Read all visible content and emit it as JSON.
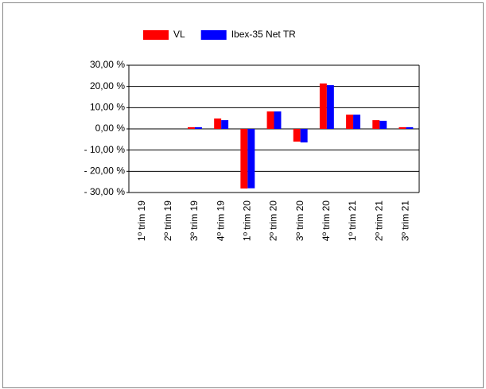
{
  "chart_data": {
    "type": "bar",
    "categories": [
      "1º trim 19",
      "2º trim 19",
      "3º trim 19",
      "4º trim 19",
      "1º trim 20",
      "2º trim 20",
      "3º trim 20",
      "4º trim 20",
      "1º trim 21",
      "2º trim 21",
      "3º trim 21"
    ],
    "series": [
      {
        "name": "VL",
        "color": "#ff0000",
        "values": [
          null,
          null,
          0.8,
          4.9,
          -28.1,
          8.2,
          -6.0,
          21.4,
          6.7,
          4.1,
          0.8
        ]
      },
      {
        "name": "Ibex-35 Net TR",
        "color": "#0000ff",
        "values": [
          null,
          null,
          0.8,
          4.1,
          -28.0,
          8.2,
          -6.4,
          20.6,
          6.7,
          3.8,
          0.8
        ]
      }
    ],
    "ylim": [
      -30,
      30
    ],
    "yticks": [
      {
        "value": 30,
        "label": "30,00 %"
      },
      {
        "value": 20,
        "label": "20,00 %"
      },
      {
        "value": 10,
        "label": "10,00 %"
      },
      {
        "value": 0,
        "label": "0,00 %"
      },
      {
        "value": -10,
        "label": "- 10,00 %"
      },
      {
        "value": -20,
        "label": "- 20,00 %"
      },
      {
        "value": -30,
        "label": "- 30,00 %"
      }
    ],
    "grid": true,
    "legend": "top"
  }
}
